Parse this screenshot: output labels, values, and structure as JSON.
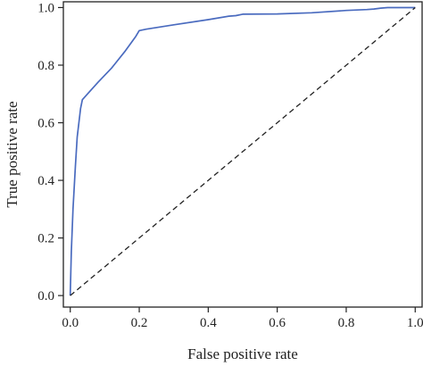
{
  "chart_data": {
    "type": "line",
    "xlabel": "False positive rate",
    "ylabel": "True positive rate",
    "xlim": [
      -0.02,
      1.02
    ],
    "ylim": [
      -0.04,
      1.02
    ],
    "x_ticks": [
      "0.0",
      "0.2",
      "0.4",
      "0.6",
      "0.8",
      "1.0"
    ],
    "y_ticks": [
      "0.0",
      "0.2",
      "0.4",
      "0.6",
      "0.8",
      "1.0"
    ],
    "grid": false,
    "series": [
      {
        "color": "#4a6bbf",
        "x": [
          0.0,
          0.003,
          0.008,
          0.015,
          0.02,
          0.025,
          0.03,
          0.035,
          0.05,
          0.08,
          0.12,
          0.16,
          0.19,
          0.2,
          0.22,
          0.3,
          0.4,
          0.46,
          0.48,
          0.5,
          0.6,
          0.7,
          0.8,
          0.86,
          0.88,
          0.9,
          0.92,
          1.0
        ],
        "y": [
          0.0,
          0.15,
          0.3,
          0.45,
          0.55,
          0.6,
          0.65,
          0.68,
          0.7,
          0.74,
          0.79,
          0.85,
          0.9,
          0.92,
          0.925,
          0.94,
          0.958,
          0.97,
          0.972,
          0.977,
          0.978,
          0.982,
          0.99,
          0.993,
          0.995,
          0.998,
          1.0,
          1.0
        ]
      },
      {
        "color": "#222222",
        "style": "dashed",
        "x": [
          0.0,
          1.0
        ],
        "y": [
          0.0,
          1.0
        ]
      }
    ]
  }
}
